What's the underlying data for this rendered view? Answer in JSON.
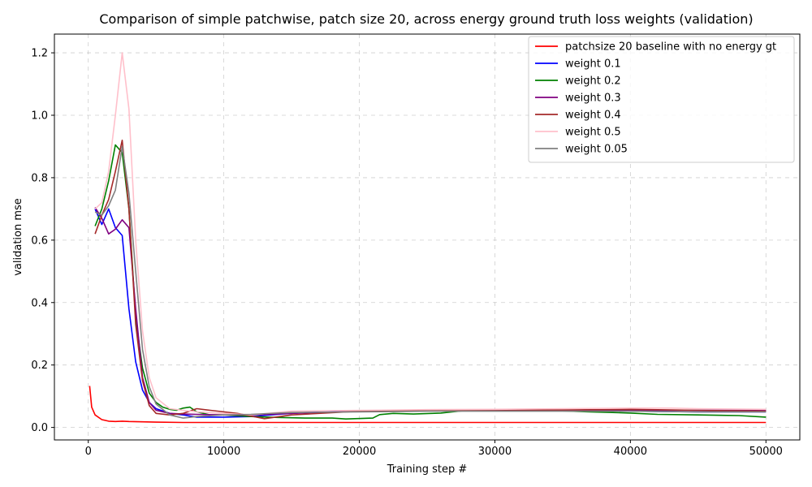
{
  "chart_data": {
    "type": "line",
    "title": "Comparison of simple patchwise, patch size 20, across energy ground truth loss weights (validation)",
    "xlabel": "Training step #",
    "ylabel": "validation mse",
    "xlim": [
      -2500,
      52500
    ],
    "ylim": [
      -0.04,
      1.26
    ],
    "xticks": [
      0,
      10000,
      20000,
      30000,
      40000,
      50000
    ],
    "yticks": [
      0.0,
      0.2,
      0.4,
      0.6,
      0.8,
      1.0,
      1.2
    ],
    "xtick_labels": [
      "0",
      "10000",
      "20000",
      "30000",
      "40000",
      "50000"
    ],
    "ytick_labels": [
      "0.0",
      "0.2",
      "0.4",
      "0.6",
      "0.8",
      "1.0",
      "1.2"
    ],
    "grid": true,
    "legend_position": "top-right",
    "series": [
      {
        "name": "patchsize 20 baseline with no energy gt",
        "color": "#ff0000",
        "x": [
          100,
          250,
          500,
          1000,
          1500,
          2000,
          2500,
          3000,
          4000,
          5000,
          7000,
          10000,
          15000,
          20000,
          25000,
          30000,
          35000,
          40000,
          45000,
          50000
        ],
        "y": [
          0.133,
          0.065,
          0.04,
          0.025,
          0.02,
          0.019,
          0.02,
          0.019,
          0.018,
          0.017,
          0.016,
          0.016,
          0.016,
          0.016,
          0.016,
          0.016,
          0.016,
          0.016,
          0.016,
          0.016
        ]
      },
      {
        "name": "weight 0.1",
        "color": "#0000ff",
        "x": [
          500,
          1000,
          1500,
          2000,
          2500,
          3000,
          3500,
          4000,
          4500,
          5000,
          6000,
          7000,
          8000,
          9000,
          10000,
          12000,
          14000,
          16000,
          20000,
          25000,
          30000,
          35000,
          40000,
          45000,
          50000
        ],
        "y": [
          0.7,
          0.65,
          0.7,
          0.64,
          0.615,
          0.38,
          0.21,
          0.12,
          0.08,
          0.06,
          0.045,
          0.04,
          0.033,
          0.033,
          0.033,
          0.035,
          0.042,
          0.048,
          0.052,
          0.053,
          0.054,
          0.054,
          0.052,
          0.05,
          0.05
        ]
      },
      {
        "name": "weight 0.2",
        "color": "#008000",
        "x": [
          500,
          1000,
          1500,
          2000,
          2500,
          3000,
          3500,
          4000,
          4500,
          5000,
          5500,
          6000,
          6500,
          7000,
          7500,
          8000,
          9000,
          10000,
          12000,
          14000,
          16000,
          18000,
          19000,
          21000,
          21500,
          22500,
          24000,
          26000,
          28000,
          30000,
          35000,
          37000,
          40000,
          42000,
          45000,
          48000,
          50000
        ],
        "y": [
          0.645,
          0.7,
          0.79,
          0.905,
          0.88,
          0.7,
          0.35,
          0.19,
          0.11,
          0.08,
          0.065,
          0.058,
          0.055,
          0.062,
          0.065,
          0.05,
          0.04,
          0.04,
          0.035,
          0.032,
          0.03,
          0.03,
          0.027,
          0.03,
          0.041,
          0.045,
          0.043,
          0.046,
          0.055,
          0.055,
          0.053,
          0.05,
          0.046,
          0.042,
          0.04,
          0.038,
          0.033
        ]
      },
      {
        "name": "weight 0.3",
        "color": "#800080",
        "x": [
          500,
          1000,
          1500,
          2000,
          2500,
          3000,
          3500,
          4000,
          4500,
          5000,
          6000,
          7000,
          8000,
          10000,
          12000,
          15000,
          20000,
          25000,
          30000,
          35000,
          40000,
          45000,
          50000
        ],
        "y": [
          0.705,
          0.67,
          0.62,
          0.635,
          0.665,
          0.64,
          0.38,
          0.16,
          0.08,
          0.055,
          0.045,
          0.043,
          0.042,
          0.04,
          0.04,
          0.045,
          0.052,
          0.053,
          0.054,
          0.055,
          0.055,
          0.055,
          0.055
        ]
      },
      {
        "name": "weight 0.4",
        "color": "#a52a2a",
        "x": [
          500,
          1000,
          1500,
          2000,
          2500,
          3000,
          3500,
          4000,
          4500,
          5000,
          6000,
          7000,
          8000,
          9000,
          11000,
          13000,
          15000,
          20000,
          25000,
          30000,
          35000,
          40000,
          45000,
          50000
        ],
        "y": [
          0.62,
          0.68,
          0.73,
          0.82,
          0.92,
          0.7,
          0.33,
          0.15,
          0.07,
          0.045,
          0.04,
          0.045,
          0.06,
          0.055,
          0.045,
          0.028,
          0.04,
          0.052,
          0.055,
          0.056,
          0.056,
          0.058,
          0.055,
          0.052
        ]
      },
      {
        "name": "weight 0.5",
        "color": "#ffc0cb",
        "x": [
          500,
          1000,
          1500,
          2000,
          2500,
          3000,
          3500,
          4000,
          4500,
          5000,
          6000,
          7000,
          8000,
          10000,
          12000,
          15000,
          20000,
          25000,
          30000,
          35000,
          40000,
          43000,
          45000,
          50000
        ],
        "y": [
          0.7,
          0.72,
          0.82,
          1.0,
          1.2,
          1.02,
          0.6,
          0.31,
          0.16,
          0.095,
          0.06,
          0.055,
          0.05,
          0.045,
          0.04,
          0.052,
          0.055,
          0.057,
          0.058,
          0.06,
          0.062,
          0.062,
          0.06,
          0.058
        ]
      },
      {
        "name": "weight 0.05",
        "color": "#808080",
        "x": [
          500,
          1000,
          1500,
          2000,
          2500,
          3000,
          3500,
          4000,
          4500,
          5000,
          6000,
          7000,
          8000,
          10000,
          12000,
          15000,
          20000,
          25000,
          30000,
          35000,
          40000,
          45000,
          50000
        ],
        "y": [
          0.69,
          0.68,
          0.71,
          0.76,
          0.9,
          0.75,
          0.5,
          0.25,
          0.13,
          0.075,
          0.04,
          0.03,
          0.035,
          0.04,
          0.042,
          0.048,
          0.05,
          0.052,
          0.052,
          0.052,
          0.052,
          0.05,
          0.05
        ]
      }
    ]
  }
}
